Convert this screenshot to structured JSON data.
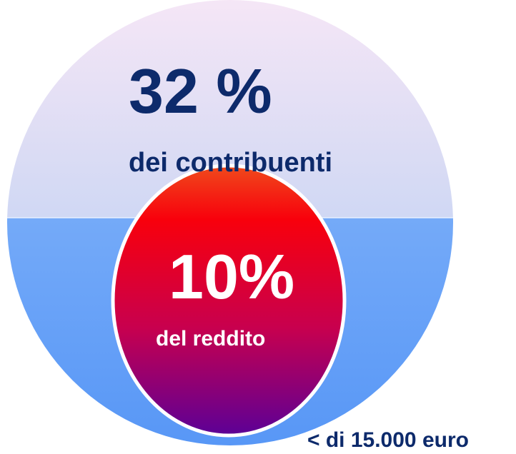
{
  "outer": {
    "value": "32 %",
    "label": "dei contribuenti"
  },
  "inner": {
    "value": "10%",
    "label": "del reddito"
  },
  "footnote": "< di 15.000 euro"
}
